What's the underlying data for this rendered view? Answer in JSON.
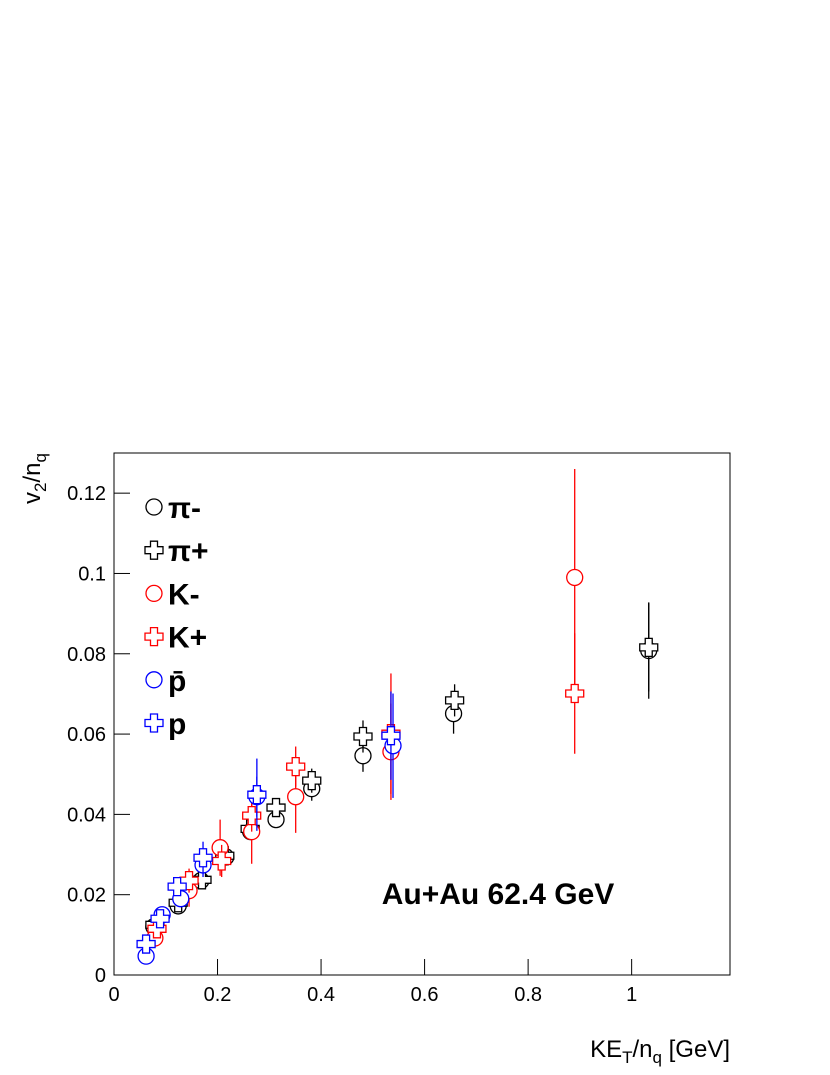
{
  "chart_data": {
    "type": "scatter",
    "xlabel": [
      "KE",
      "T",
      "/n",
      "q",
      " [GeV]"
    ],
    "ylabel": [
      "v",
      "2",
      "/n",
      "q"
    ],
    "annotation": "Au+Au 62.4 GeV",
    "xlim": [
      0,
      1.19
    ],
    "xticks": [
      0,
      0.2,
      0.4,
      0.6,
      0.8,
      1
    ],
    "ylim": [
      0,
      0.13
    ],
    "yticks": [
      0,
      0.02,
      0.04,
      0.06,
      0.08,
      0.1,
      0.12
    ],
    "series": [
      {
        "name": "π-",
        "color": "#000000",
        "marker": "circle",
        "x": [
          0.077,
          0.124,
          0.168,
          0.216,
          0.264,
          0.313,
          0.382,
          0.481,
          0.656,
          1.033
        ],
        "values": [
          0.012,
          0.0172,
          0.0235,
          0.0294,
          0.0357,
          0.0387,
          0.0464,
          0.0546,
          0.0651,
          0.0808
        ],
        "errors": [
          0.001,
          0.0015,
          0.0015,
          0.0015,
          0.002,
          0.002,
          0.003,
          0.004,
          0.005,
          0.012
        ]
      },
      {
        "name": "π+",
        "color": "#000000",
        "marker": "cross",
        "x": [
          0.079,
          0.124,
          0.17,
          0.214,
          0.263,
          0.313,
          0.382,
          0.481,
          0.658,
          1.033
        ],
        "values": [
          0.0125,
          0.018,
          0.0237,
          0.0297,
          0.0364,
          0.0417,
          0.0484,
          0.0594,
          0.0684,
          0.0816
        ],
        "errors": [
          0.001,
          0.0015,
          0.0015,
          0.0015,
          0.002,
          0.002,
          0.003,
          0.004,
          0.004,
          0.011
        ]
      },
      {
        "name": "K-",
        "color": "#ff0000",
        "marker": "circle",
        "x": [
          0.079,
          0.145,
          0.205,
          0.266,
          0.351,
          0.535,
          0.89
        ],
        "values": [
          0.0092,
          0.021,
          0.0317,
          0.0357,
          0.0444,
          0.0556,
          0.099
        ],
        "errors": [
          0.002,
          0.004,
          0.007,
          0.008,
          0.009,
          0.012,
          0.027
        ]
      },
      {
        "name": "K+",
        "color": "#ff0000",
        "marker": "cross",
        "x": [
          0.083,
          0.145,
          0.208,
          0.266,
          0.351,
          0.535,
          0.89
        ],
        "values": [
          0.0115,
          0.0235,
          0.0284,
          0.0397,
          0.0519,
          0.0601,
          0.0701
        ],
        "errors": [
          0.002,
          0.003,
          0.004,
          0.004,
          0.005,
          0.015,
          0.015
        ]
      },
      {
        "name": "p̄",
        "color": "#0000ff",
        "marker": "circle",
        "x": [
          0.062,
          0.093,
          0.129,
          0.172,
          0.276,
          0.539
        ],
        "values": [
          0.0047,
          0.015,
          0.019,
          0.0274,
          0.0444,
          0.0571
        ],
        "errors": [
          0.001,
          0.0015,
          0.002,
          0.003,
          0.005,
          0.013
        ]
      },
      {
        "name": "p",
        "color": "#0000ff",
        "marker": "cross",
        "x": [
          0.062,
          0.089,
          0.122,
          0.172,
          0.276,
          0.535
        ],
        "values": [
          0.0077,
          0.014,
          0.022,
          0.0292,
          0.0449,
          0.0596
        ],
        "errors": [
          0.001,
          0.0015,
          0.002,
          0.004,
          0.009,
          0.011
        ]
      }
    ]
  }
}
